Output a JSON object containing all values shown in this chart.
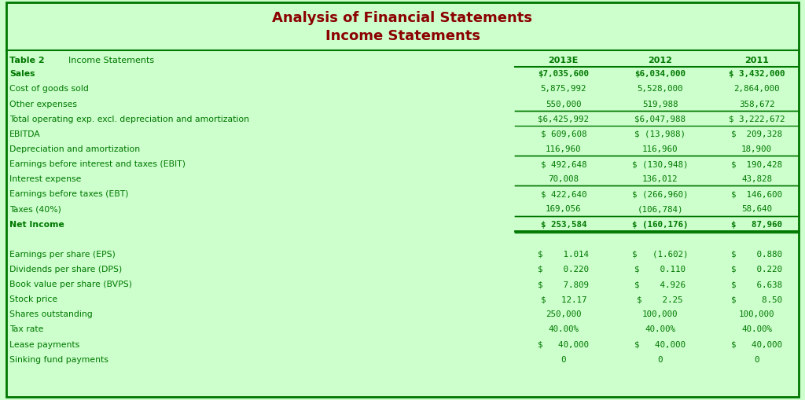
{
  "title_line1": "Analysis of Financial Statements",
  "title_line2": "Income Statements",
  "title_color": "#8B0000",
  "bg_color": "#CCFFCC",
  "text_color": "#007700",
  "border_color": "#007700",
  "col_headers": [
    "2013E",
    "2012",
    "2011"
  ],
  "rows": [
    {
      "label": "Sales",
      "vals": [
        "$7,035,600",
        "$6,034,000",
        "$ 3,432,000"
      ],
      "bold": true,
      "gap_before": true,
      "line_above_vals": false,
      "line_below_vals": false,
      "double_below": false
    },
    {
      "label": "Cost of goods sold",
      "vals": [
        "5,875,992",
        "5,528,000",
        "2,864,000"
      ],
      "bold": false,
      "gap_before": false,
      "line_above_vals": false,
      "line_below_vals": false,
      "double_below": false
    },
    {
      "label": "Other expenses",
      "vals": [
        "550,000",
        "519,988",
        "358,672"
      ],
      "bold": false,
      "gap_before": false,
      "line_above_vals": false,
      "line_below_vals": true,
      "double_below": false
    },
    {
      "label": "Total operating exp. excl. depreciation and amortization",
      "vals": [
        "$6,425,992",
        "$6,047,988",
        "$ 3,222,672"
      ],
      "bold": false,
      "gap_before": false,
      "line_above_vals": true,
      "line_below_vals": true,
      "double_below": false
    },
    {
      "label": "EBITDA",
      "vals": [
        "$ 609,608",
        "$ (13,988)",
        "$  209,328"
      ],
      "bold": false,
      "gap_before": false,
      "line_above_vals": false,
      "line_below_vals": false,
      "double_below": false
    },
    {
      "label": "Depreciation and amortization",
      "vals": [
        "116,960",
        "116,960",
        "18,900"
      ],
      "bold": false,
      "gap_before": false,
      "line_above_vals": false,
      "line_below_vals": true,
      "double_below": false
    },
    {
      "label": "Earnings before interest and taxes (EBIT)",
      "vals": [
        "$ 492,648",
        "$ (130,948)",
        "$  190,428"
      ],
      "bold": false,
      "gap_before": false,
      "line_above_vals": true,
      "line_below_vals": false,
      "double_below": false
    },
    {
      "label": "Interest expense",
      "vals": [
        "70,008",
        "136,012",
        "43,828"
      ],
      "bold": false,
      "gap_before": false,
      "line_above_vals": false,
      "line_below_vals": true,
      "double_below": false
    },
    {
      "label": "Earnings before taxes (EBT)",
      "vals": [
        "$ 422,640",
        "$ (266,960)",
        "$  146,600"
      ],
      "bold": false,
      "gap_before": false,
      "line_above_vals": true,
      "line_below_vals": false,
      "double_below": false
    },
    {
      "label": "Taxes (40%)",
      "vals": [
        "169,056",
        "(106,784)",
        "58,640"
      ],
      "bold": false,
      "gap_before": false,
      "line_above_vals": false,
      "line_below_vals": true,
      "double_below": false
    },
    {
      "label": "Net Income",
      "vals": [
        "$ 253,584",
        "$ (160,176)",
        "$   87,960"
      ],
      "bold": true,
      "gap_before": false,
      "line_above_vals": true,
      "line_below_vals": true,
      "double_below": true
    },
    {
      "label": "",
      "vals": [
        "",
        "",
        ""
      ],
      "bold": false,
      "gap_before": false,
      "line_above_vals": false,
      "line_below_vals": false,
      "double_below": false
    },
    {
      "label": "Earnings per share (EPS)",
      "vals": [
        "$    1.014",
        "$   (1.602)",
        "$    0.880"
      ],
      "bold": false,
      "gap_before": false,
      "line_above_vals": false,
      "line_below_vals": false,
      "double_below": false
    },
    {
      "label": "Dividends per share (DPS)",
      "vals": [
        "$    0.220",
        "$    0.110",
        "$    0.220"
      ],
      "bold": false,
      "gap_before": false,
      "line_above_vals": false,
      "line_below_vals": false,
      "double_below": false
    },
    {
      "label": "Book value per share (BVPS)",
      "vals": [
        "$    7.809",
        "$    4.926",
        "$    6.638"
      ],
      "bold": false,
      "gap_before": false,
      "line_above_vals": false,
      "line_below_vals": false,
      "double_below": false
    },
    {
      "label": "Stock price",
      "vals": [
        "$   12.17",
        "$    2.25",
        "$     8.50"
      ],
      "bold": false,
      "gap_before": false,
      "line_above_vals": false,
      "line_below_vals": false,
      "double_below": false
    },
    {
      "label": "Shares outstanding",
      "vals": [
        "250,000",
        "100,000",
        "100,000"
      ],
      "bold": false,
      "gap_before": false,
      "line_above_vals": false,
      "line_below_vals": false,
      "double_below": false
    },
    {
      "label": "Tax rate",
      "vals": [
        "40.00%",
        "40.00%",
        "40.00%"
      ],
      "bold": false,
      "gap_before": false,
      "line_above_vals": false,
      "line_below_vals": false,
      "double_below": false
    },
    {
      "label": "Lease payments",
      "vals": [
        "$   40,000",
        "$   40,000",
        "$   40,000"
      ],
      "bold": false,
      "gap_before": false,
      "line_above_vals": false,
      "line_below_vals": false,
      "double_below": false
    },
    {
      "label": "Sinking fund payments",
      "vals": [
        "0",
        "0",
        "0"
      ],
      "bold": false,
      "gap_before": false,
      "line_above_vals": false,
      "line_below_vals": false,
      "double_below": false
    }
  ],
  "figsize": [
    10.24,
    5.1
  ],
  "dpi": 100
}
